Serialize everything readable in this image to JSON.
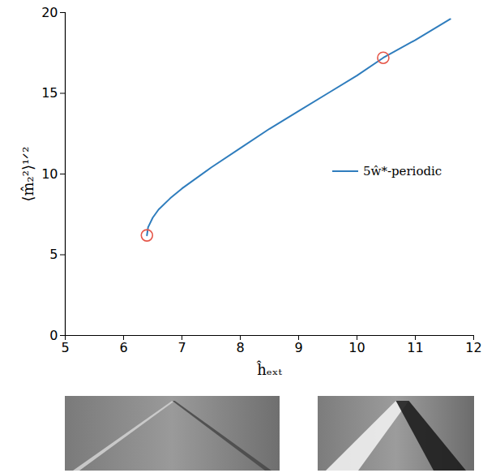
{
  "chart_data": {
    "type": "line",
    "xlabel": "ĥₑₓₜ",
    "ylabel": "⟨m̂₂²⟩¹ᐟ²",
    "xlim": [
      5,
      12
    ],
    "xticks": [
      5,
      6,
      7,
      8,
      9,
      10,
      11,
      12
    ],
    "ylim": [
      0,
      20
    ],
    "yticks": [
      0,
      5,
      10,
      15,
      20
    ],
    "grid": false,
    "legend": "right",
    "series": [
      {
        "name": "5ŵ*-periodic",
        "color": "#2f7dbd",
        "line_style": "solid",
        "x": [
          6.4,
          6.42,
          6.5,
          6.6,
          6.8,
          7.0,
          7.5,
          8.0,
          8.5,
          9.0,
          9.5,
          10.0,
          10.45,
          11.0,
          11.6
        ],
        "values": [
          6.2,
          6.7,
          7.3,
          7.8,
          8.5,
          9.1,
          10.4,
          11.6,
          12.8,
          13.9,
          15.0,
          16.1,
          17.2,
          18.3,
          19.6
        ]
      }
    ],
    "markers": {
      "x": [
        6.4,
        10.45
      ],
      "y": [
        6.2,
        17.2
      ],
      "color": "#e5574a",
      "marker": "circle"
    }
  }
}
